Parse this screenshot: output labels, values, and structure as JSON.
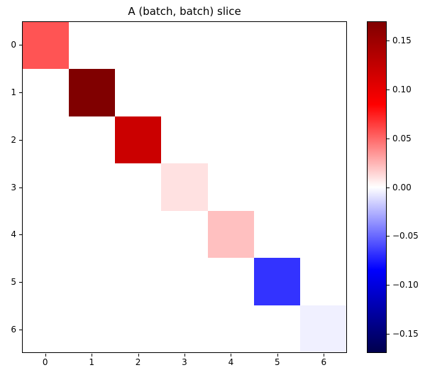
{
  "chart_data": {
    "type": "heatmap",
    "title": "A (batch, batch) slice",
    "x_tick_labels": [
      "0",
      "1",
      "2",
      "3",
      "4",
      "5",
      "6"
    ],
    "y_tick_labels": [
      "0",
      "1",
      "2",
      "3",
      "4",
      "5",
      "6"
    ],
    "matrix": [
      [
        0.057,
        0,
        0,
        0,
        0,
        0,
        0
      ],
      [
        0,
        0.17,
        0,
        0,
        0,
        0,
        0
      ],
      [
        0,
        0,
        0.12,
        0,
        0,
        0,
        0
      ],
      [
        0,
        0,
        0,
        0.01,
        0,
        0,
        0
      ],
      [
        0,
        0,
        0,
        0,
        0.021,
        0,
        0
      ],
      [
        0,
        0,
        0,
        0,
        0,
        -0.068,
        0
      ],
      [
        0,
        0,
        0,
        0,
        0,
        0,
        -0.005
      ]
    ],
    "diagonal_values": [
      0.057,
      0.17,
      0.12,
      0.01,
      0.021,
      -0.068,
      -0.005
    ],
    "colormap": "seismic",
    "colormap_stops": [
      [
        0.0,
        "#00004d"
      ],
      [
        0.25,
        "#0000ff"
      ],
      [
        0.5,
        "#ffffff"
      ],
      [
        0.75,
        "#ff0000"
      ],
      [
        1.0,
        "#800000"
      ]
    ],
    "colorbar": {
      "vmin": -0.17,
      "vmax": 0.17,
      "tick_values": [
        0.15,
        0.1,
        0.05,
        0.0,
        -0.05,
        -0.1,
        -0.15
      ],
      "tick_labels": [
        "0.15",
        "0.10",
        "0.05",
        "0.00",
        "−0.05",
        "−0.10",
        "−0.15"
      ]
    },
    "grid": false,
    "legend_position": "none",
    "axes": {
      "x_range": [
        -0.5,
        6.5
      ],
      "y_range": [
        6.5,
        -0.5
      ]
    }
  }
}
